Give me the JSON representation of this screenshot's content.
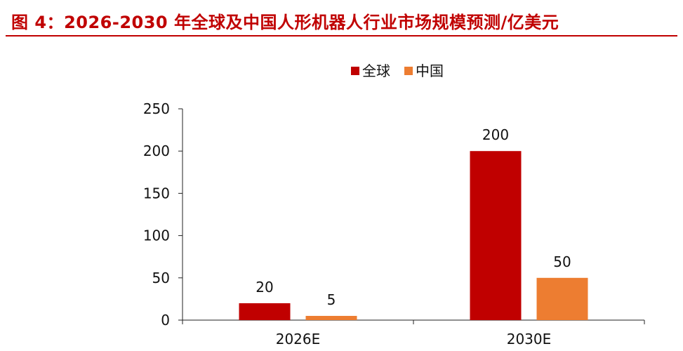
{
  "figure": {
    "label": "图 4：",
    "title": "2026-2030 年全球及中国人形机器人行业市场规模预测/亿美元"
  },
  "colors": {
    "title": "#c00000",
    "global": "#c00000",
    "china": "#ed7d31",
    "axis": "#222222"
  },
  "chart_data": {
    "type": "bar",
    "title": "",
    "xlabel": "",
    "ylabel": "",
    "categories": [
      "2026E",
      "2030E"
    ],
    "series": [
      {
        "name": "全球",
        "values": [
          20,
          200
        ],
        "color": "#c00000"
      },
      {
        "name": "中国",
        "values": [
          5,
          50
        ],
        "color": "#ed7d31"
      }
    ],
    "ylim": [
      0,
      250
    ],
    "yticks": [
      0,
      50,
      100,
      150,
      200,
      250
    ],
    "grid": false,
    "legend": "top-center",
    "data_labels": true
  }
}
